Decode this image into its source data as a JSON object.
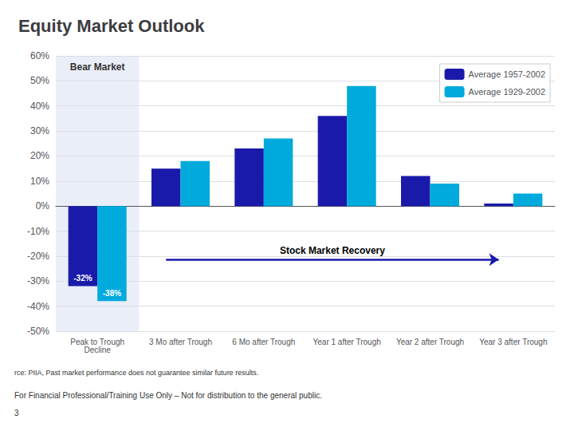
{
  "chart_data": {
    "type": "bar",
    "title": "Equity Market Outlook",
    "categories": [
      "Peak to Trough\nDecline",
      "3 Mo after Trough",
      "6 Mo after Trough",
      "Year 1 after Trough",
      "Year 2 after Trough",
      "Year 3 after Trough"
    ],
    "series": [
      {
        "name": "Average 1957-2002",
        "color": "#1a1aaa",
        "values": [
          -32,
          15,
          23,
          36,
          12,
          1
        ],
        "value_labels": [
          "-32%",
          null,
          null,
          null,
          null,
          null
        ]
      },
      {
        "name": "Average 1929-2002",
        "color": "#00aadd",
        "values": [
          -38,
          18,
          27,
          48,
          9,
          5
        ],
        "value_labels": [
          "-38%",
          null,
          null,
          null,
          null,
          null
        ]
      }
    ],
    "ylim": [
      -50,
      60
    ],
    "yticks": [
      {
        "value": -50,
        "label": "-50%"
      },
      {
        "value": -40,
        "label": "-40%"
      },
      {
        "value": -30,
        "label": "-30%"
      },
      {
        "value": -20,
        "label": "-20%"
      },
      {
        "value": -10,
        "label": "-10%"
      },
      {
        "value": 0,
        "label": "0%"
      },
      {
        "value": 10,
        "label": "10%"
      },
      {
        "value": 20,
        "label": "20%"
      },
      {
        "value": 30,
        "label": "30%"
      },
      {
        "value": 40,
        "label": "40%"
      },
      {
        "value": 50,
        "label": "50%"
      },
      {
        "value": 60,
        "label": "60%"
      }
    ],
    "grid": true,
    "legend": "upper right",
    "annotations": [
      "Bear Market",
      "Stock Market Recovery",
      "rce: PIIA, Past market performance does not guarantee similar future results.",
      "For Financial Professional/Training Use Only – Not for distribution to the general public.",
      "3"
    ]
  }
}
